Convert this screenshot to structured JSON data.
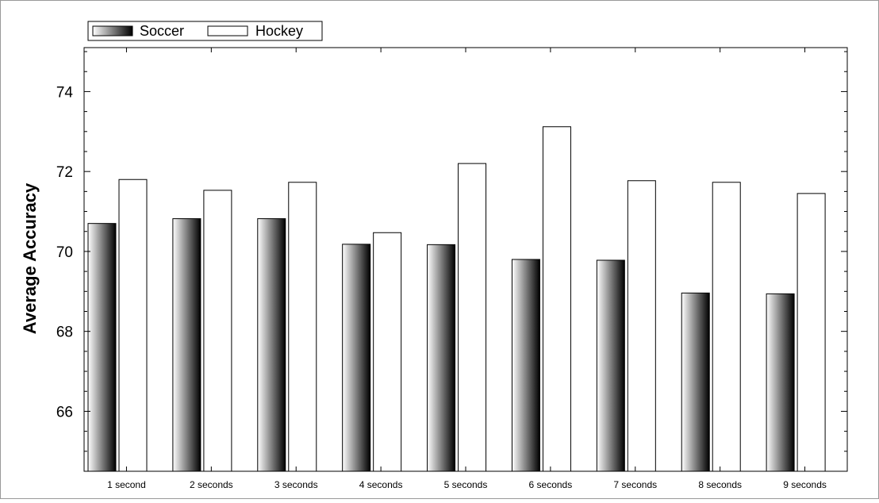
{
  "chart_data": {
    "type": "bar",
    "title": "",
    "xlabel": "",
    "ylabel": "Average Accuracy",
    "categories": [
      "1 second",
      "2 seconds",
      "3 seconds",
      "4 seconds",
      "5 seconds",
      "6 seconds",
      "7 seconds",
      "8 seconds",
      "9 seconds"
    ],
    "series": [
      {
        "name": "Soccer",
        "style": "gradient",
        "values": [
          70.7,
          70.82,
          70.82,
          70.18,
          70.17,
          69.8,
          69.78,
          68.96,
          68.94
        ]
      },
      {
        "name": "Hockey",
        "style": "white",
        "values": [
          71.8,
          71.53,
          71.73,
          70.47,
          72.2,
          73.12,
          71.77,
          71.73,
          71.45
        ]
      }
    ],
    "ylim": [
      64.5,
      75.1
    ],
    "yticks": [
      66,
      68,
      70,
      72,
      74
    ],
    "grid": false,
    "legend_position": "top-left"
  },
  "colors": {
    "gradient_light": "#ffffff",
    "gradient_dark": "#000000",
    "bar_outline": "#000000",
    "axis": "#000000",
    "frame": "#999999"
  }
}
